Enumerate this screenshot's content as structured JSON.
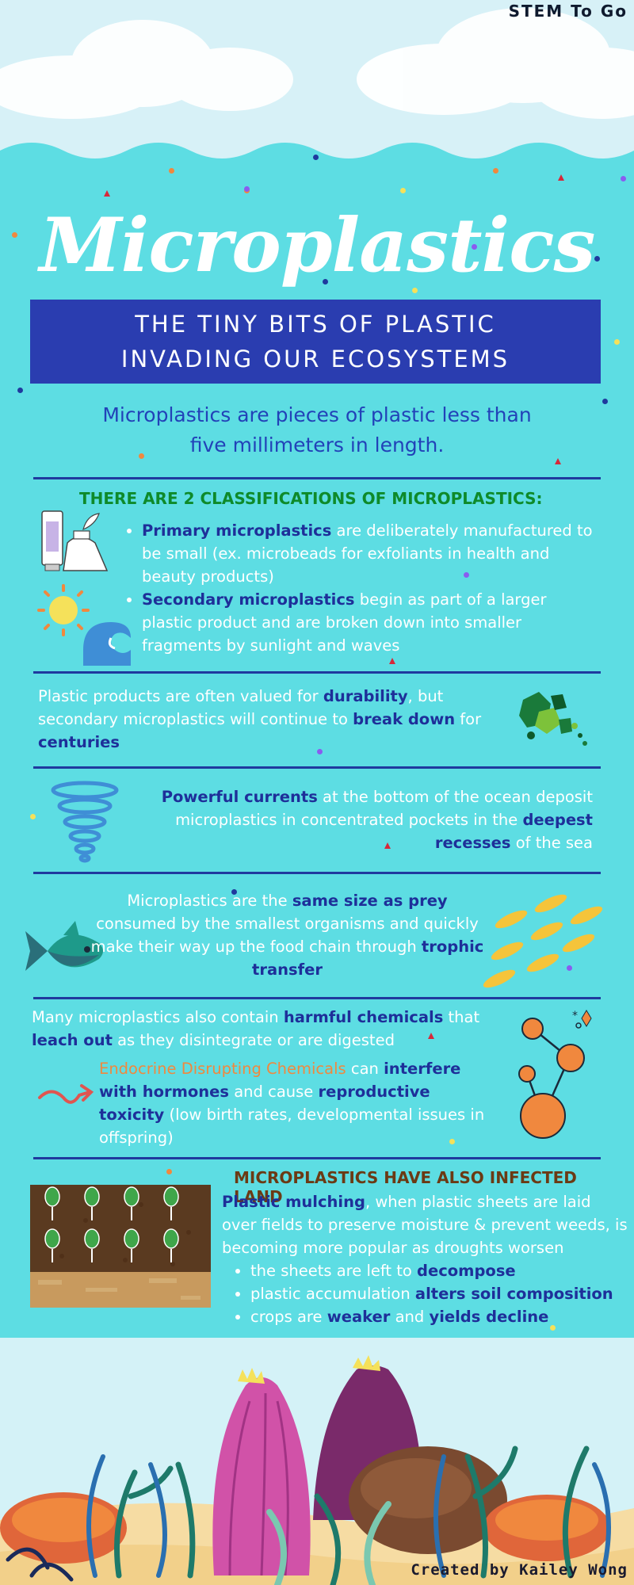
{
  "header": {
    "brand": "STEM To Go"
  },
  "title": "Microplastics",
  "banner": {
    "line1": "THE TINY BITS OF PLASTIC",
    "line2": "INVADING OUR ECOSYSTEMS"
  },
  "intro": {
    "line1": "Microplastics are pieces of plastic less than",
    "line2": "five millimeters in length."
  },
  "classifications": {
    "heading": "THERE ARE 2 CLASSIFICATIONS OF MICROPLASTICS:",
    "primary_term": "Primary microplastics",
    "primary_rest": " are deliberately manufactured to be small (ex. microbeads for exfoliants in health and beauty products)",
    "secondary_term": "Secondary microplastics",
    "secondary_rest": " begin as part of a larger plastic product and are broken down into smaller fragments by sunlight and waves"
  },
  "durability": {
    "p1": "Plastic products are often valued for ",
    "term1": "durability",
    "p2": ", but secondary microplastics will continue to ",
    "term2": "break down",
    "p3": " for ",
    "term3": "centuries"
  },
  "currents": {
    "term1": "Powerful currents",
    "p1": " at the bottom of the ocean deposit microplastics in concentrated pockets in the ",
    "term2": "deepest recesses",
    "p2": " of the sea"
  },
  "prey": {
    "p1": "Microplastics are the ",
    "term1": "same size as prey",
    "p2": " consumed by the smallest organisms and quickly make their way up the food chain through ",
    "term2": "trophic transfer"
  },
  "chemicals": {
    "p1": "Many microplastics also contain ",
    "term1": "harmful chemicals",
    "p2": " that ",
    "term2": "leach out",
    "p3": " as they disintegrate or are digested",
    "edc": "Endocrine Disrupting Chemicals",
    "p4": " can ",
    "term3": "interfere with hormones",
    "p5": " and cause ",
    "term4": "reproductive toxicity",
    "p6": " (low birth rates, developmental issues in offspring)"
  },
  "land": {
    "heading": "MICROPLASTICS HAVE ALSO INFECTED LAND",
    "term1": "Plastic mulching",
    "p1": ", when plastic sheets are laid over fields to preserve moisture & prevent weeds, is becoming more popular as droughts worsen",
    "b1_a": "the sheets are left to ",
    "b1_t": "decompose",
    "b2_a": "plastic accumulation ",
    "b2_t": "alters soil composition",
    "b3_a": "crops are ",
    "b3_t": "weaker",
    "b3_b": " and ",
    "b3_t2": "yields decline"
  },
  "footer": {
    "credit": "Created by Kailey Wong"
  },
  "icons": [
    "cosmetics-icon",
    "sun-icon",
    "wave-icon",
    "plastic-fragments-icon",
    "whirlpool-icon",
    "fish-icon",
    "fish-school-icon",
    "arrow-icon",
    "molecule-icon",
    "crop-field-icon",
    "coral-reef-illustration"
  ],
  "colors": {
    "background": "#5ddde3",
    "banner": "#2a3db0",
    "highlight": "#1e2f99",
    "intro": "#2242b8",
    "green_heading": "#0e8a2a",
    "orange": "#f0883e"
  }
}
